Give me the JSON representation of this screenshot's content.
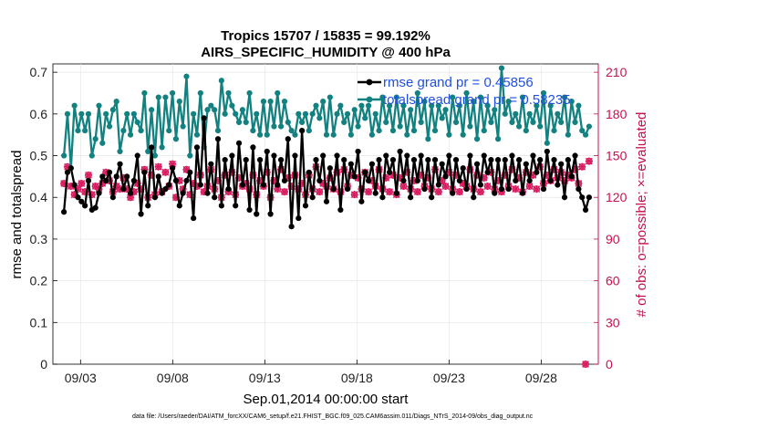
{
  "chart_data": {
    "type": "line",
    "title": "Tropics 15707 / 15835 = 99.192%",
    "subtitle": "AIRS_SPECIFIC_HUMIDITY @ 400 hPa",
    "xlabel": "Sep.01,2014 00:00:00 start",
    "ylabel": "rmse and totalspread",
    "y2label": "# of obs: o=possible; ×=evaluated",
    "x_tick_labels": [
      "09/03",
      "09/08",
      "09/13",
      "09/18",
      "09/23",
      "09/28"
    ],
    "x_tick_days": [
      2,
      7,
      12,
      17,
      22,
      27
    ],
    "xlim": [
      0.5,
      30.1
    ],
    "ylim": [
      0,
      0.72
    ],
    "y_ticks": [
      "0",
      "0.1",
      "0.2",
      "0.3",
      "0.4",
      "0.5",
      "0.6",
      "0.7"
    ],
    "y2lim": [
      0,
      216
    ],
    "y2_ticks": [
      "0",
      "30",
      "60",
      "90",
      "120",
      "150",
      "180",
      "210"
    ],
    "footnote": "data file: /Users/raeder/DAI/ATM_forcXX/CAM6_setup/f.e21.FHIST_BGC.f09_025.CAM6assim.011/Diags_NTrS_2014-09/obs_diag_output.nc",
    "legend": [
      "rmse grand pr = 0.45856",
      "totalspread grand pr = 0.58235"
    ],
    "colors": {
      "rmse": "#000000",
      "spread": "#12817f",
      "obs": "#d81b60",
      "axis_right": "#c8104e",
      "legend_text": "#1f4fe0"
    },
    "series": [
      {
        "name": "rmse",
        "values": [
          0.365,
          0.46,
          0.47,
          0.43,
          0.4,
          0.39,
          0.38,
          0.44,
          0.37,
          0.375,
          0.41,
          0.45,
          0.44,
          0.46,
          0.4,
          0.45,
          0.48,
          0.42,
          0.45,
          0.41,
          0.44,
          0.5,
          0.36,
          0.46,
          0.38,
          0.52,
          0.4,
          0.45,
          0.41,
          0.42,
          0.43,
          0.47,
          0.44,
          0.38,
          0.41,
          0.44,
          0.46,
          0.35,
          0.52,
          0.43,
          0.59,
          0.41,
          0.48,
          0.4,
          0.54,
          0.38,
          0.49,
          0.42,
          0.5,
          0.38,
          0.53,
          0.43,
          0.49,
          0.37,
          0.52,
          0.36,
          0.49,
          0.43,
          0.51,
          0.36,
          0.5,
          0.43,
          0.49,
          0.44,
          0.54,
          0.33,
          0.5,
          0.35,
          0.56,
          0.38,
          0.46,
          0.4,
          0.49,
          0.44,
          0.5,
          0.39,
          0.47,
          0.42,
          0.5,
          0.37,
          0.49,
          0.42,
          0.48,
          0.45,
          0.51,
          0.39,
          0.46,
          0.44,
          0.48,
          0.41,
          0.49,
          0.4,
          0.5,
          0.46,
          0.49,
          0.41,
          0.51,
          0.44,
          0.5,
          0.4,
          0.49,
          0.44,
          0.5,
          0.42,
          0.49,
          0.4,
          0.49,
          0.43,
          0.48,
          0.45,
          0.5,
          0.41,
          0.49,
          0.44,
          0.47,
          0.42,
          0.5,
          0.4,
          0.48,
          0.43,
          0.5,
          0.46,
          0.49,
          0.41,
          0.49,
          0.42,
          0.49,
          0.42,
          0.5,
          0.44,
          0.49,
          0.41,
          0.48,
          0.44,
          0.5,
          0.46,
          0.49,
          0.42,
          0.51,
          0.44,
          0.49,
          0.43,
          0.48,
          0.4,
          0.49,
          0.45,
          0.5,
          0.42,
          0.4,
          0.37,
          0.4
        ]
      },
      {
        "name": "totalspread",
        "values": [
          0.5,
          0.6,
          0.47,
          0.62,
          0.56,
          0.6,
          0.56,
          0.6,
          0.5,
          0.54,
          0.62,
          0.53,
          0.6,
          0.57,
          0.61,
          0.63,
          0.51,
          0.56,
          0.6,
          0.55,
          0.6,
          0.58,
          0.56,
          0.65,
          0.51,
          0.61,
          0.5,
          0.64,
          0.52,
          0.64,
          0.56,
          0.65,
          0.54,
          0.63,
          0.57,
          0.69,
          0.5,
          0.6,
          0.55,
          0.65,
          0.52,
          0.61,
          0.62,
          0.61,
          0.56,
          0.68,
          0.6,
          0.65,
          0.62,
          0.6,
          0.58,
          0.61,
          0.58,
          0.65,
          0.56,
          0.6,
          0.55,
          0.63,
          0.55,
          0.63,
          0.57,
          0.65,
          0.57,
          0.63,
          0.58,
          0.56,
          0.55,
          0.6,
          0.58,
          0.6,
          0.56,
          0.6,
          0.62,
          0.59,
          0.63,
          0.55,
          0.64,
          0.55,
          0.6,
          0.62,
          0.58,
          0.6,
          0.55,
          0.61,
          0.57,
          0.62,
          0.59,
          0.62,
          0.55,
          0.6,
          0.56,
          0.64,
          0.58,
          0.62,
          0.56,
          0.64,
          0.57,
          0.62,
          0.55,
          0.61,
          0.56,
          0.65,
          0.58,
          0.63,
          0.54,
          0.62,
          0.56,
          0.62,
          0.59,
          0.61,
          0.55,
          0.64,
          0.58,
          0.62,
          0.55,
          0.65,
          0.57,
          0.63,
          0.54,
          0.64,
          0.56,
          0.62,
          0.58,
          0.61,
          0.54,
          0.71,
          0.6,
          0.63,
          0.58,
          0.6,
          0.57,
          0.64,
          0.56,
          0.6,
          0.58,
          0.62,
          0.57,
          0.65,
          0.53,
          0.62,
          0.56,
          0.6,
          0.58,
          0.64,
          0.55,
          0.63,
          0.58,
          0.62,
          0.56,
          0.55,
          0.57
        ]
      },
      {
        "name": "obs_possible",
        "values": [
          130,
          142,
          128,
          122,
          126,
          130,
          124,
          136,
          122,
          128,
          126,
          130,
          138,
          132,
          124,
          128,
          126,
          134,
          126,
          120,
          124,
          130,
          126,
          140,
          120,
          136,
          122,
          142,
          124,
          138,
          128,
          144,
          120,
          132,
          126,
          140,
          122,
          130,
          128,
          136,
          124,
          128,
          140,
          126,
          132,
          120,
          136,
          124,
          138,
          122,
          134,
          128,
          130,
          126,
          136,
          122,
          132,
          128,
          138,
          120,
          132,
          126,
          140,
          124,
          134,
          128,
          136,
          126,
          130,
          122,
          136,
          126,
          142,
          124,
          130,
          128,
          134,
          126,
          138,
          124,
          140,
          128,
          136,
          122,
          134,
          126,
          138,
          124,
          132,
          128,
          140,
          126,
          134,
          124,
          136,
          122,
          134,
          128,
          138,
          126,
          132,
          124,
          136,
          128,
          134,
          126,
          140,
          124,
          132,
          128,
          138,
          126,
          136,
          124,
          130,
          128,
          140,
          126,
          136,
          124,
          134,
          128,
          138,
          126,
          132,
          124,
          136,
          128,
          140,
          126,
          134,
          124,
          138,
          128,
          136,
          126,
          142,
          130,
          136,
          132,
          140,
          134,
          138,
          132,
          136,
          134,
          140,
          130,
          142,
          0,
          146
        ]
      },
      {
        "name": "obs_evaluated",
        "values": [
          130,
          142,
          128,
          122,
          126,
          130,
          124,
          136,
          122,
          128,
          126,
          130,
          138,
          132,
          124,
          128,
          126,
          134,
          126,
          120,
          124,
          130,
          126,
          140,
          120,
          136,
          122,
          142,
          124,
          138,
          128,
          144,
          120,
          132,
          126,
          140,
          122,
          130,
          128,
          136,
          124,
          128,
          140,
          126,
          132,
          120,
          136,
          124,
          138,
          122,
          134,
          128,
          130,
          126,
          136,
          122,
          132,
          128,
          138,
          120,
          132,
          126,
          140,
          124,
          134,
          128,
          136,
          126,
          130,
          122,
          136,
          126,
          142,
          124,
          130,
          128,
          134,
          126,
          138,
          124,
          140,
          128,
          136,
          122,
          134,
          126,
          138,
          124,
          132,
          128,
          140,
          126,
          134,
          124,
          136,
          122,
          134,
          128,
          138,
          126,
          132,
          124,
          136,
          128,
          134,
          126,
          140,
          124,
          132,
          128,
          138,
          126,
          136,
          124,
          130,
          128,
          140,
          126,
          136,
          124,
          134,
          128,
          138,
          126,
          132,
          124,
          136,
          128,
          140,
          126,
          134,
          124,
          138,
          128,
          136,
          126,
          142,
          130,
          136,
          132,
          140,
          134,
          138,
          132,
          136,
          134,
          140,
          130,
          142,
          0,
          146
        ]
      }
    ]
  }
}
